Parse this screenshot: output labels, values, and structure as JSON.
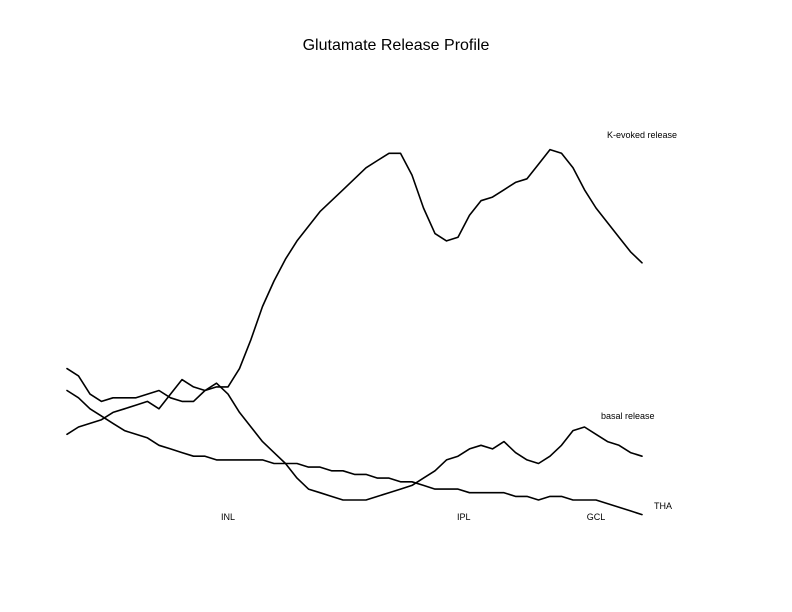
{
  "chart_data": {
    "type": "line",
    "title": "Glutamate Release Profile",
    "xlabel": "",
    "ylabel": "",
    "x": [
      0,
      2,
      4,
      6,
      8,
      10,
      12,
      14,
      16,
      18,
      20,
      22,
      24,
      26,
      28,
      30,
      32,
      34,
      36,
      38,
      40,
      42,
      44,
      46,
      48,
      50,
      52,
      54,
      56,
      58,
      60,
      62,
      64,
      66,
      68,
      70,
      72,
      74,
      76,
      78,
      80,
      82,
      84,
      86,
      88,
      90,
      92,
      94,
      96,
      98,
      100
    ],
    "xlim": [
      0,
      100
    ],
    "ylim": [
      0,
      100
    ],
    "grid": false,
    "legend": "none",
    "region_labels": [
      {
        "label": "INL",
        "x": 28
      },
      {
        "label": "IPL",
        "x": 69
      },
      {
        "label": "GCL",
        "x": 92
      }
    ],
    "series": [
      {
        "name": "K-evoked release",
        "values": [
          36,
          34,
          29,
          27,
          28,
          28,
          28,
          29,
          30,
          28,
          27,
          27,
          30,
          31,
          31,
          36,
          44,
          53,
          60,
          66,
          71,
          75,
          79,
          82,
          85,
          88,
          91,
          93,
          95,
          95,
          89,
          80,
          73,
          71,
          72,
          78,
          82,
          83,
          85,
          87,
          88,
          92,
          96,
          95,
          91,
          85,
          80,
          76,
          72,
          68,
          65
        ]
      },
      {
        "name": "basal release",
        "values": [
          18,
          20,
          21,
          22,
          24,
          25,
          26,
          27,
          25,
          29,
          33,
          31,
          30,
          32,
          29,
          24,
          20,
          16,
          13,
          10,
          6,
          3,
          2,
          1,
          0,
          0,
          0,
          1,
          2,
          3,
          4,
          6,
          8,
          11,
          12,
          14,
          15,
          14,
          16,
          13,
          11,
          10,
          12,
          15,
          19,
          20,
          18,
          16,
          15,
          13,
          12
        ]
      },
      {
        "name": "THA",
        "values": [
          30,
          28,
          25,
          23,
          21,
          19,
          18,
          17,
          15,
          14,
          13,
          12,
          12,
          11,
          11,
          11,
          11,
          11,
          10,
          10,
          10,
          9,
          9,
          8,
          8,
          7,
          7,
          6,
          6,
          5,
          5,
          4,
          3,
          3,
          3,
          2,
          2,
          2,
          2,
          1,
          1,
          0,
          1,
          1,
          0,
          0,
          0,
          -1,
          -2,
          -3,
          -4
        ]
      }
    ]
  }
}
